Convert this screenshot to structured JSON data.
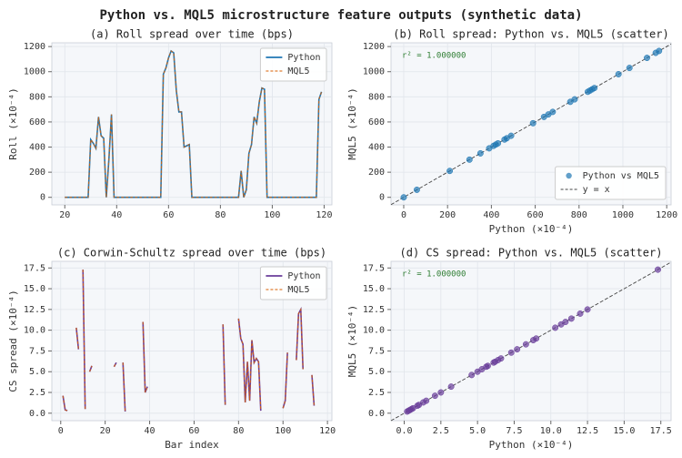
{
  "title": "Python vs. MQL5 microstructure feature outputs (synthetic data)",
  "chart_data": [
    {
      "type": "line",
      "title": "(a) Roll spread over time (bps)",
      "ylabel": "Roll (×10⁻⁴)",
      "x": [
        20,
        21,
        22,
        23,
        24,
        25,
        26,
        27,
        28,
        29,
        30,
        31,
        32,
        33,
        34,
        35,
        36,
        37,
        38,
        39,
        40,
        41,
        42,
        43,
        44,
        45,
        46,
        47,
        48,
        49,
        50,
        51,
        52,
        53,
        54,
        55,
        56,
        57,
        58,
        59,
        60,
        61,
        62,
        63,
        64,
        65,
        66,
        67,
        68,
        69,
        70,
        71,
        72,
        73,
        74,
        75,
        76,
        77,
        78,
        79,
        80,
        81,
        82,
        83,
        84,
        85,
        86,
        87,
        88,
        89,
        90,
        91,
        92,
        93,
        94,
        95,
        96,
        97,
        98,
        99,
        100,
        101,
        102,
        103,
        104,
        105,
        106,
        107,
        108,
        109,
        110,
        111,
        112,
        113,
        114,
        115,
        116,
        117,
        118,
        119
      ],
      "series": [
        {
          "name": "Python",
          "color": "#1f77b4",
          "linestyle": "solid",
          "values": [
            0,
            0,
            0,
            0,
            0,
            0,
            0,
            0,
            0,
            0,
            460,
            430,
            390,
            640,
            490,
            470,
            0,
            300,
            660,
            0,
            0,
            0,
            0,
            0,
            0,
            0,
            0,
            0,
            0,
            0,
            0,
            0,
            0,
            0,
            0,
            0,
            0,
            0,
            980,
            1030,
            1110,
            1165,
            1150,
            850,
            680,
            680,
            400,
            410,
            420,
            0,
            0,
            0,
            0,
            0,
            0,
            0,
            0,
            0,
            0,
            0,
            0,
            0,
            0,
            0,
            0,
            0,
            0,
            0,
            210,
            0,
            60,
            350,
            420,
            640,
            590,
            760,
            870,
            860,
            0,
            0,
            0,
            0,
            0,
            0,
            0,
            0,
            0,
            0,
            0,
            0,
            0,
            0,
            0,
            0,
            0,
            0,
            0,
            0,
            780,
            840
          ]
        },
        {
          "name": "MQL5",
          "color": "#d95f02",
          "linestyle": "dashed",
          "values": [
            0,
            0,
            0,
            0,
            0,
            0,
            0,
            0,
            0,
            0,
            460,
            430,
            390,
            640,
            490,
            470,
            0,
            300,
            660,
            0,
            0,
            0,
            0,
            0,
            0,
            0,
            0,
            0,
            0,
            0,
            0,
            0,
            0,
            0,
            0,
            0,
            0,
            0,
            980,
            1030,
            1110,
            1165,
            1150,
            850,
            680,
            680,
            400,
            410,
            420,
            0,
            0,
            0,
            0,
            0,
            0,
            0,
            0,
            0,
            0,
            0,
            0,
            0,
            0,
            0,
            0,
            0,
            0,
            0,
            210,
            0,
            60,
            350,
            420,
            640,
            590,
            760,
            870,
            860,
            0,
            0,
            0,
            0,
            0,
            0,
            0,
            0,
            0,
            0,
            0,
            0,
            0,
            0,
            0,
            0,
            0,
            0,
            0,
            0,
            780,
            840
          ]
        }
      ],
      "xlim": [
        15,
        123
      ],
      "xticks": [
        20,
        40,
        60,
        80,
        100,
        120
      ],
      "ylim": [
        -60,
        1230
      ],
      "yticks": [
        0,
        200,
        400,
        600,
        800,
        1000,
        1200
      ],
      "grid": true,
      "legend": "upper right"
    },
    {
      "type": "scatter",
      "title": "(b) Roll spread: Python vs. MQL5 (scatter)",
      "xlabel": "Python (×10⁻⁴)",
      "ylabel": "MQL5 (×10⁻⁴)",
      "annotation": "r² = 1.000000",
      "annotation_color": "#2e7d32",
      "x": [
        0,
        60,
        210,
        300,
        350,
        390,
        410,
        420,
        430,
        460,
        470,
        490,
        590,
        640,
        660,
        680,
        760,
        780,
        840,
        850,
        860,
        870,
        980,
        1030,
        1110,
        1150,
        1165
      ],
      "series": [
        {
          "name": "Python vs MQL5",
          "color": "#1f77b4",
          "values": [
            0,
            60,
            210,
            300,
            350,
            390,
            410,
            420,
            430,
            460,
            470,
            490,
            590,
            640,
            660,
            680,
            760,
            780,
            840,
            850,
            860,
            870,
            980,
            1030,
            1110,
            1150,
            1165
          ]
        }
      ],
      "reference_line": {
        "name": "y = x",
        "color": "#444"
      },
      "xlim": [
        -58,
        1220
      ],
      "xticks": [
        0,
        200,
        400,
        600,
        800,
        1000,
        1200
      ],
      "ylim": [
        -60,
        1230
      ],
      "yticks": [
        0,
        200,
        400,
        600,
        800,
        1000,
        1200
      ],
      "grid": true,
      "legend": "lower right"
    },
    {
      "type": "line",
      "title": "(c) Corwin-Schultz spread over time (bps)",
      "xlabel": "Bar index",
      "ylabel": "CS spread (×10⁻⁴)",
      "x": [
        1,
        2,
        3,
        5,
        7,
        8,
        9,
        10,
        11,
        12,
        13,
        14,
        15,
        24,
        25,
        26,
        28,
        29,
        30,
        37,
        38,
        39,
        40,
        73,
        74,
        75,
        80,
        81,
        82,
        83,
        84,
        85,
        86,
        87,
        88,
        89,
        90,
        91,
        100,
        101,
        102,
        103,
        106,
        107,
        108,
        109,
        110,
        113,
        114
      ],
      "series": [
        {
          "name": "Python",
          "color": "#6a3d9a",
          "linestyle": "solid",
          "values": [
            2.1,
            0.4,
            0.3,
            null,
            10.3,
            7.7,
            null,
            17.3,
            0.5,
            null,
            5.0,
            5.7,
            null,
            5.6,
            6.1,
            null,
            6.1,
            0.2,
            null,
            11.0,
            2.5,
            3.2,
            null,
            10.7,
            1.0,
            null,
            11.4,
            9.0,
            8.3,
            1.3,
            6.2,
            1.5,
            8.8,
            6.1,
            6.6,
            6.2,
            0.3,
            null,
            0.6,
            1.5,
            7.3,
            null,
            6.4,
            12.0,
            12.5,
            5.3,
            null,
            4.6,
            0.9
          ]
        },
        {
          "name": "MQL5",
          "color": "#d95f02",
          "linestyle": "dashed",
          "values": [
            2.1,
            0.4,
            0.3,
            null,
            10.3,
            7.7,
            null,
            17.3,
            0.5,
            null,
            5.0,
            5.7,
            null,
            5.6,
            6.1,
            null,
            6.1,
            0.2,
            null,
            11.0,
            2.5,
            3.2,
            null,
            10.7,
            1.0,
            null,
            11.4,
            9.0,
            8.3,
            1.3,
            6.2,
            1.5,
            8.8,
            6.1,
            6.6,
            6.2,
            0.3,
            null,
            0.6,
            1.5,
            7.3,
            null,
            6.4,
            12.0,
            12.5,
            5.3,
            null,
            4.6,
            0.9
          ]
        }
      ],
      "xlim": [
        -4,
        122
      ],
      "xticks": [
        0,
        20,
        40,
        60,
        80,
        100,
        120
      ],
      "ylim": [
        -0.9,
        18.3
      ],
      "yticks": [
        {
          "value": 0,
          "label": "0.0"
        },
        2.5,
        {
          "value": 5,
          "label": "5.0"
        },
        7.5,
        {
          "value": 10,
          "label": "10.0"
        },
        12.5,
        {
          "value": 15,
          "label": "15.0"
        },
        17.5
      ],
      "grid": true,
      "legend": "upper right"
    },
    {
      "type": "scatter",
      "title": "(d) CS spread: Python vs. MQL5 (scatter)",
      "xlabel": "Python (×10⁻⁴)",
      "ylabel": "MQL5 (×10⁻⁴)",
      "annotation": "r² = 1.000000",
      "annotation_color": "#2e7d32",
      "x": [
        2.1,
        0.4,
        0.3,
        10.3,
        7.7,
        17.3,
        0.5,
        5.0,
        5.7,
        5.6,
        6.1,
        0.2,
        11.0,
        2.5,
        3.2,
        10.7,
        1.0,
        11.4,
        9.0,
        8.3,
        1.3,
        6.2,
        1.5,
        8.8,
        6.6,
        0.6,
        7.3,
        6.4,
        12.0,
        12.5,
        5.3,
        4.6,
        0.9
      ],
      "series": [
        {
          "name": "Python vs MQL5",
          "color": "#6a3d9a",
          "values": [
            2.1,
            0.4,
            0.3,
            10.3,
            7.7,
            17.3,
            0.5,
            5.0,
            5.7,
            5.6,
            6.1,
            0.2,
            11.0,
            2.5,
            3.2,
            10.7,
            1.0,
            11.4,
            9.0,
            8.3,
            1.3,
            6.2,
            1.5,
            8.8,
            6.6,
            0.6,
            7.3,
            6.4,
            12.0,
            12.5,
            5.3,
            4.6,
            0.9
          ]
        }
      ],
      "reference_line": {
        "color": "#444"
      },
      "xlim": [
        -0.9,
        18.2
      ],
      "xticks": [
        {
          "value": 0,
          "label": "0.0"
        },
        2.5,
        {
          "value": 5,
          "label": "5.0"
        },
        7.5,
        {
          "value": 10,
          "label": "10.0"
        },
        12.5,
        {
          "value": 15,
          "label": "15.0"
        },
        17.5
      ],
      "ylim": [
        -0.9,
        18.3
      ],
      "yticks": [
        {
          "value": 0,
          "label": "0.0"
        },
        2.5,
        {
          "value": 5,
          "label": "5.0"
        },
        7.5,
        {
          "value": 10,
          "label": "10.0"
        },
        12.5,
        {
          "value": 15,
          "label": "15.0"
        },
        17.5
      ],
      "grid": true
    }
  ]
}
